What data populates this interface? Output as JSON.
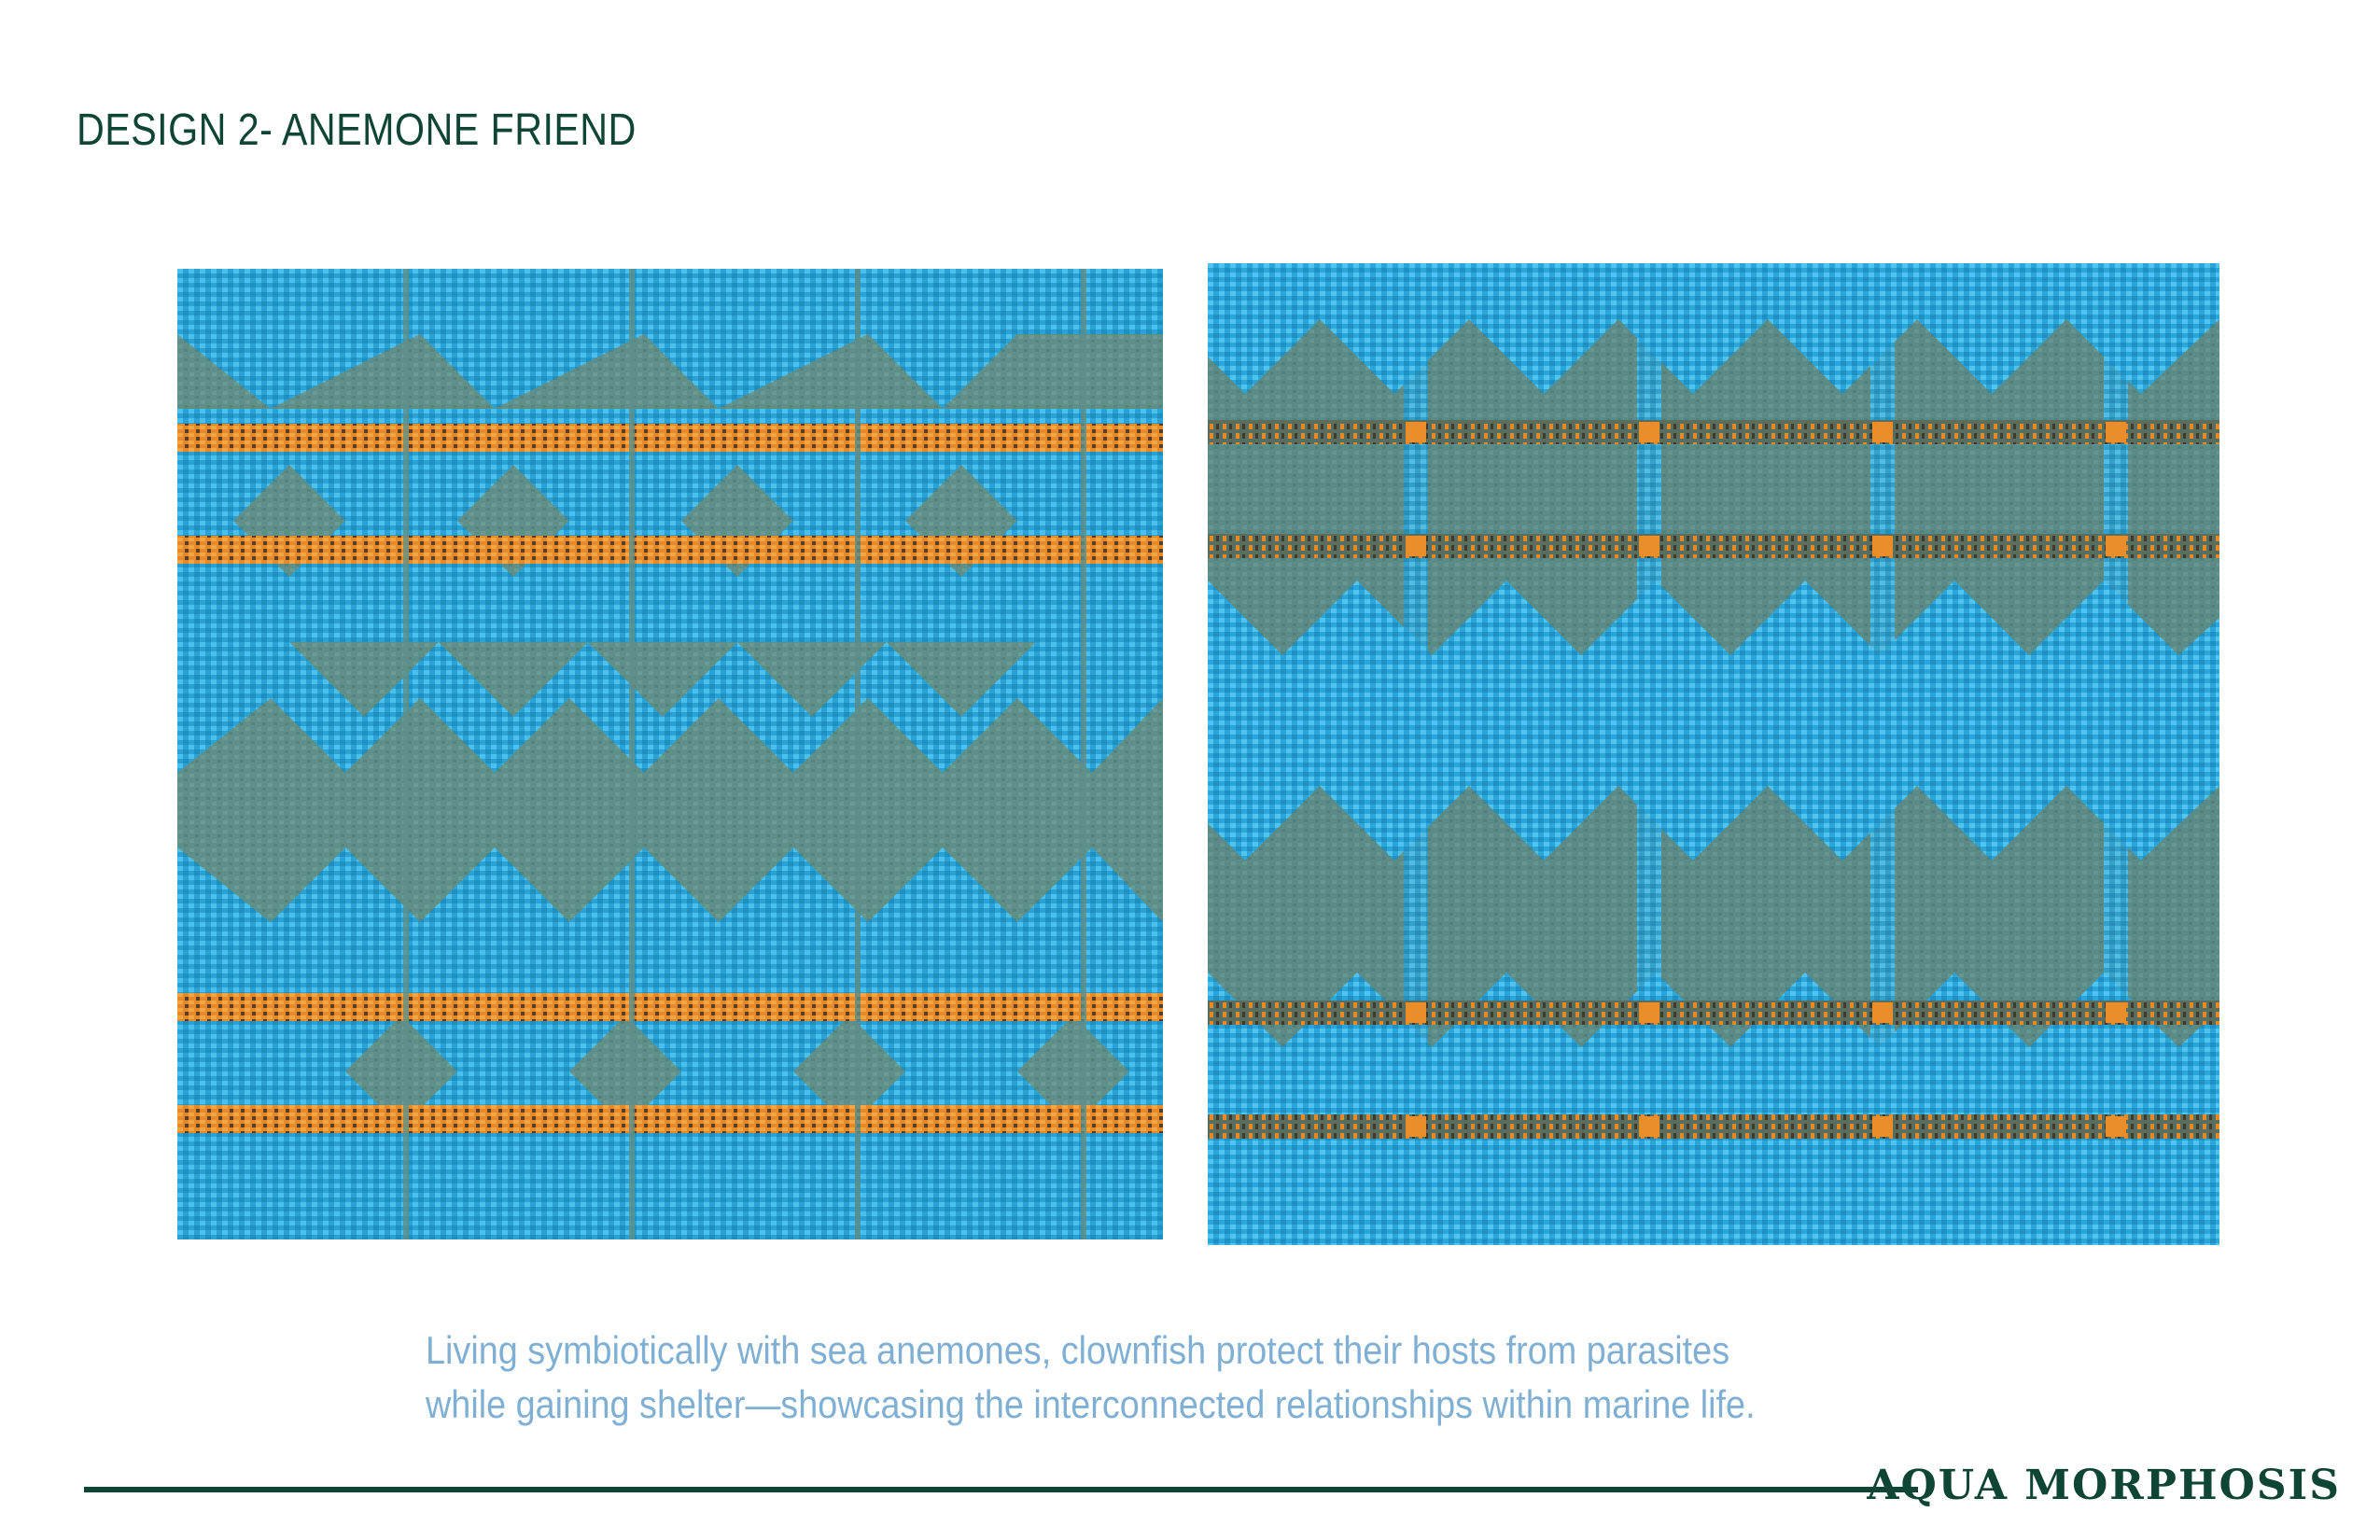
{
  "page": {
    "title": "DESIGN 2- ANEMONE FRIEND",
    "caption_lines": [
      "Living symbiotically with sea anemones, clownfish protect their hosts from parasites",
      "while gaining shelter—showcasing the interconnected relationships within marine life."
    ],
    "brand": "AQUA MORPHOSIS"
  },
  "colors": {
    "heading": "#0f4534",
    "caption": "#7fb0d4",
    "fabric_teal": "#5e8f88",
    "fabric_blue": "#2fa9dc",
    "fabric_orange": "#e8892c",
    "fabric_dark": "#4a3a28"
  }
}
